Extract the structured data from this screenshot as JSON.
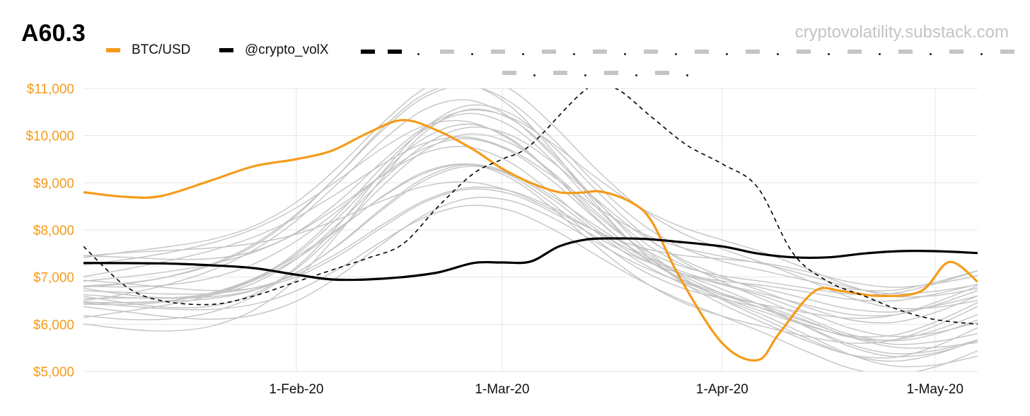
{
  "title": "A60.3",
  "watermark": "cryptovolatility.substack.com",
  "colors": {
    "btc": "#f59b1a",
    "vol": "#000000",
    "gray": "#c4c4c4",
    "axis_text": "#f59b1a",
    "grid": "#e6e6e6"
  },
  "legend": {
    "btc_label": "BTC/USD",
    "vol_label": "@crypto_volX"
  },
  "chart_data": {
    "type": "line",
    "title": "A60.3",
    "xlabel": "",
    "ylabel": "",
    "x_range": [
      "2020-01-02",
      "2020-05-07"
    ],
    "ylim": [
      5000,
      11000
    ],
    "y_ticks": [
      5000,
      6000,
      7000,
      8000,
      9000,
      10000,
      11000
    ],
    "y_tick_labels": [
      "$5,000",
      "$6,000",
      "$7,000",
      "$8,000",
      "$9,000",
      "$10,000",
      "$11,000"
    ],
    "x_ticks": [
      "2020-02-01",
      "2020-03-01",
      "2020-04-01",
      "2020-05-01"
    ],
    "x_tick_labels": [
      "1-Feb-20",
      "1-Mar-20",
      "1-Apr-20",
      "1-May-20"
    ],
    "grid": true,
    "legend_position": "top",
    "series": [
      {
        "name": "BTC/USD",
        "color": "#f59b1a",
        "style": "solid",
        "x": [
          "2020-01-02",
          "2020-01-08",
          "2020-01-13",
          "2020-01-20",
          "2020-01-26",
          "2020-02-01",
          "2020-02-06",
          "2020-02-11",
          "2020-02-16",
          "2020-02-21",
          "2020-02-26",
          "2020-03-01",
          "2020-03-05",
          "2020-03-09",
          "2020-03-12",
          "2020-03-15",
          "2020-03-19",
          "2020-03-22",
          "2020-03-26",
          "2020-04-01",
          "2020-04-06",
          "2020-04-09",
          "2020-04-14",
          "2020-04-18",
          "2020-04-23",
          "2020-04-29",
          "2020-05-03",
          "2020-05-07"
        ],
        "y": [
          8800,
          8700,
          8720,
          9050,
          9350,
          9500,
          9680,
          10050,
          10330,
          10100,
          9700,
          9300,
          9000,
          8800,
          8790,
          8810,
          8600,
          8200,
          7000,
          5600,
          5240,
          5800,
          6700,
          6700,
          6600,
          6700,
          7320,
          6900
        ]
      },
      {
        "name": "@crypto_volX",
        "color": "#000000",
        "style": "solid",
        "x": [
          "2020-01-02",
          "2020-01-13",
          "2020-01-20",
          "2020-01-26",
          "2020-02-01",
          "2020-02-06",
          "2020-02-11",
          "2020-02-16",
          "2020-02-21",
          "2020-02-26",
          "2020-03-01",
          "2020-03-05",
          "2020-03-09",
          "2020-03-13",
          "2020-03-17",
          "2020-03-21",
          "2020-03-25",
          "2020-04-01",
          "2020-04-06",
          "2020-04-11",
          "2020-04-16",
          "2020-04-21",
          "2020-04-26",
          "2020-05-01",
          "2020-05-07"
        ],
        "y": [
          7300,
          7290,
          7250,
          7190,
          7050,
          6950,
          6950,
          7000,
          7100,
          7300,
          7310,
          7330,
          7650,
          7800,
          7820,
          7810,
          7760,
          7650,
          7500,
          7420,
          7420,
          7500,
          7550,
          7550,
          7510
        ]
      },
      {
        "color": "#000000",
        "style": "dashed",
        "x": [
          "2020-01-02",
          "2020-01-08",
          "2020-01-13",
          "2020-01-20",
          "2020-01-26",
          "2020-02-01",
          "2020-02-06",
          "2020-02-11",
          "2020-02-16",
          "2020-02-21",
          "2020-02-26",
          "2020-03-01",
          "2020-03-05",
          "2020-03-13",
          "2020-03-17",
          "2020-03-22",
          "2020-03-27",
          "2020-04-01",
          "2020-04-06",
          "2020-04-11",
          "2020-04-16",
          "2020-04-21",
          "2020-04-26",
          "2020-05-01",
          "2020-05-07"
        ],
        "y": [
          7650,
          6800,
          6500,
          6420,
          6600,
          6900,
          7150,
          7400,
          7700,
          8500,
          9200,
          9500,
          9800,
          11000,
          11000,
          10400,
          9800,
          9400,
          8900,
          7500,
          6900,
          6600,
          6300,
          6100,
          6000
        ]
      }
    ]
  }
}
